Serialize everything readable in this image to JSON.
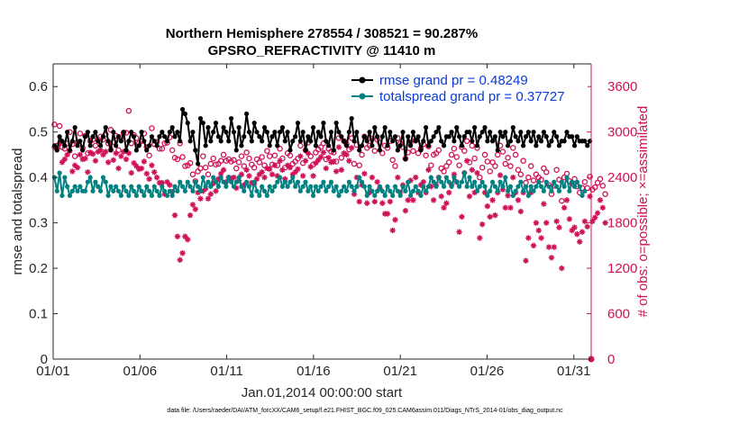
{
  "chart_data": {
    "type": "line",
    "title_line1": "Northern Hemisphere 278554 / 308521 = 90.287%",
    "title_line2": "GPSRO_REFRACTIVITY @ 11410 m",
    "ylabel_left": "rmse and totalspread",
    "ylabel_right": "# of obs: o=possible; ×=assimilated",
    "xlabel": "Jan.01,2014 00:00:00 start",
    "footnote": "data file: /Users/raeder/DAI/ATM_forcXX/CAM6_setup/f.e21.FHIST_BGC.f09_025.CAM6assim.011/Diags_NTrS_2014-01/obs_diag_output.nc",
    "x_ticks": [
      "01/01",
      "01/06",
      "01/11",
      "01/16",
      "01/21",
      "01/26",
      "01/31"
    ],
    "x_tick_days": [
      1,
      6,
      11,
      16,
      21,
      26,
      31
    ],
    "xlim": [
      1,
      32
    ],
    "ylim_left": [
      0,
      0.65
    ],
    "y_ticks_left": [
      "0",
      "0.1",
      "0.2",
      "0.3",
      "0.4",
      "0.5",
      "0.6"
    ],
    "ylim_right": [
      0,
      3900
    ],
    "y_ticks_right": [
      "0",
      "600",
      "1200",
      "1800",
      "2400",
      "3000",
      "3600"
    ],
    "grid": false,
    "legend_position": "top-right",
    "colors": {
      "rmse": "#000000",
      "totalspread": "#008080",
      "obs": "#d01058",
      "legend_text": "#0b3bd6"
    },
    "series": [
      {
        "name": "rmse grand pr = 0.48249",
        "values": [
          0.47,
          0.46,
          0.49,
          0.48,
          0.47,
          0.5,
          0.46,
          0.48,
          0.51,
          0.47,
          0.48,
          0.46,
          0.49,
          0.5,
          0.47,
          0.49,
          0.5,
          0.48,
          0.47,
          0.49,
          0.51,
          0.48,
          0.46,
          0.5,
          0.47,
          0.49,
          0.48,
          0.5,
          0.46,
          0.48,
          0.5,
          0.49,
          0.46,
          0.47,
          0.5,
          0.48,
          0.46,
          0.47,
          0.49,
          0.48,
          0.47,
          0.49,
          0.5,
          0.49,
          0.48,
          0.5,
          0.51,
          0.49,
          0.5,
          0.48,
          0.55,
          0.54,
          0.52,
          0.48,
          0.5,
          0.46,
          0.43,
          0.53,
          0.52,
          0.47,
          0.51,
          0.48,
          0.5,
          0.52,
          0.49,
          0.48,
          0.51,
          0.5,
          0.48,
          0.53,
          0.5,
          0.46,
          0.51,
          0.47,
          0.49,
          0.54,
          0.5,
          0.48,
          0.52,
          0.5,
          0.49,
          0.48,
          0.51,
          0.5,
          0.47,
          0.49,
          0.5,
          0.47,
          0.5,
          0.51,
          0.48,
          0.5,
          0.46,
          0.48,
          0.49,
          0.52,
          0.48,
          0.5,
          0.46,
          0.49,
          0.48,
          0.51,
          0.47,
          0.5,
          0.49,
          0.52,
          0.48,
          0.47,
          0.5,
          0.46,
          0.52,
          0.5,
          0.49,
          0.48,
          0.47,
          0.5,
          0.53,
          0.48,
          0.5,
          0.46,
          0.47,
          0.49,
          0.48,
          0.5,
          0.47,
          0.51,
          0.49,
          0.46,
          0.49,
          0.51,
          0.47,
          0.5,
          0.48,
          0.49,
          0.46,
          0.47,
          0.5,
          0.44,
          0.49,
          0.47,
          0.5,
          0.48,
          0.49,
          0.46,
          0.48,
          0.51,
          0.47,
          0.48,
          0.49,
          0.5,
          0.51,
          0.48,
          0.47,
          0.49,
          0.49,
          0.5,
          0.48,
          0.51,
          0.49,
          0.47,
          0.49,
          0.5,
          0.5,
          0.48,
          0.51,
          0.47,
          0.49,
          0.5,
          0.51,
          0.48,
          0.5,
          0.48,
          0.49,
          0.46,
          0.5,
          0.49,
          0.5,
          0.47,
          0.48,
          0.51,
          0.49,
          0.48,
          0.5,
          0.47,
          0.49,
          0.5,
          0.48,
          0.5,
          0.47,
          0.49,
          0.48,
          0.5,
          0.49,
          0.47,
          0.48,
          0.5,
          0.49,
          0.47,
          0.48,
          0.48,
          0.5,
          0.49,
          0.49,
          0.47,
          0.49,
          0.48,
          0.48,
          0.48,
          0.47,
          0.48
        ]
      },
      {
        "name": "totalspread grand pr = 0.37727",
        "values": [
          0.4,
          0.37,
          0.41,
          0.36,
          0.4,
          0.38,
          0.36,
          0.37,
          0.38,
          0.37,
          0.38,
          0.37,
          0.37,
          0.39,
          0.4,
          0.37,
          0.39,
          0.38,
          0.37,
          0.4,
          0.39,
          0.36,
          0.38,
          0.37,
          0.38,
          0.37,
          0.36,
          0.38,
          0.37,
          0.36,
          0.38,
          0.37,
          0.36,
          0.38,
          0.37,
          0.36,
          0.38,
          0.37,
          0.36,
          0.38,
          0.37,
          0.36,
          0.38,
          0.37,
          0.36,
          0.37,
          0.36,
          0.38,
          0.37,
          0.39,
          0.38,
          0.37,
          0.39,
          0.38,
          0.37,
          0.39,
          0.38,
          0.37,
          0.4,
          0.38,
          0.39,
          0.38,
          0.4,
          0.39,
          0.38,
          0.4,
          0.39,
          0.38,
          0.4,
          0.39,
          0.38,
          0.39,
          0.4,
          0.38,
          0.37,
          0.39,
          0.38,
          0.36,
          0.39,
          0.37,
          0.36,
          0.38,
          0.37,
          0.36,
          0.38,
          0.37,
          0.38,
          0.39,
          0.4,
          0.38,
          0.39,
          0.38,
          0.39,
          0.4,
          0.38,
          0.39,
          0.37,
          0.38,
          0.39,
          0.37,
          0.38,
          0.36,
          0.38,
          0.37,
          0.38,
          0.39,
          0.37,
          0.38,
          0.39,
          0.37,
          0.38,
          0.36,
          0.37,
          0.38,
          0.37,
          0.39,
          0.38,
          0.37,
          0.38,
          0.4,
          0.39,
          0.38,
          0.36,
          0.38,
          0.37,
          0.36,
          0.37,
          0.38,
          0.37,
          0.36,
          0.38,
          0.37,
          0.36,
          0.38,
          0.37,
          0.36,
          0.38,
          0.37,
          0.39,
          0.36,
          0.37,
          0.38,
          0.37,
          0.36,
          0.38,
          0.37,
          0.38,
          0.4,
          0.39,
          0.38,
          0.4,
          0.39,
          0.38,
          0.4,
          0.39,
          0.38,
          0.4,
          0.39,
          0.38,
          0.39,
          0.41,
          0.38,
          0.4,
          0.38,
          0.39,
          0.37,
          0.38,
          0.39,
          0.38,
          0.36,
          0.37,
          0.39,
          0.38,
          0.37,
          0.39,
          0.38,
          0.4,
          0.37,
          0.38,
          0.36,
          0.37,
          0.38,
          0.39,
          0.37,
          0.38,
          0.36,
          0.38,
          0.37,
          0.38,
          0.39,
          0.38,
          0.37,
          0.39,
          0.38,
          0.37,
          0.39,
          0.38,
          0.37,
          0.39,
          0.38,
          0.4,
          0.37,
          0.39,
          0.38,
          0.39,
          0.38,
          0.36,
          0.37
        ]
      }
    ],
    "obs_possible_counts": [
      3100,
      2820,
      3080,
      2800,
      2780,
      2850,
      3000,
      2840,
      2680,
      2870,
      2980,
      2790,
      2950,
      2720,
      2880,
      2900,
      2820,
      2900,
      2940,
      2900,
      2970,
      2850,
      3030,
      2870,
      2950,
      2760,
      2930,
      2990,
      2990,
      3280,
      2850,
      2960,
      2920,
      2850,
      2880,
      2980,
      2800,
      2690,
      3050,
      2840,
      2870,
      2780,
      2780,
      2850,
      2860,
      2930,
      2760,
      2660,
      2640,
      2850,
      2670,
      2550,
      2560,
      2590,
      2440,
      2350,
      2480,
      2520,
      2680,
      2530,
      2440,
      2580,
      2650,
      2570,
      2580,
      2620,
      2700,
      2620,
      2640,
      2610,
      2630,
      2520,
      2600,
      2680,
      2550,
      2730,
      2650,
      2570,
      2530,
      2640,
      2600,
      2670,
      2560,
      2750,
      2680,
      2570,
      2690,
      2560,
      2780,
      2650,
      2530,
      2720,
      2690,
      2580,
      2610,
      2650,
      2820,
      2590,
      2760,
      2860,
      2680,
      2570,
      2730,
      2770,
      2800,
      2850,
      2640,
      2780,
      2740,
      2730,
      2610,
      2920,
      2660,
      2880,
      2840,
      2770,
      2920,
      2580,
      2830,
      2560,
      2700,
      2940,
      2790,
      2820,
      2910,
      2750,
      2900,
      2860,
      2720,
      2820,
      2790,
      2880,
      2630,
      2550,
      2920,
      2850,
      2800,
      2650,
      2730,
      2860,
      2750,
      2890,
      2720,
      2780,
      2840,
      2690,
      2810,
      2560,
      2700,
      2720,
      2760,
      2520,
      2480,
      2550,
      2600,
      2700,
      2780,
      2670,
      2560,
      2800,
      2750,
      2880,
      2600,
      2820,
      2650,
      2790,
      2400,
      2530,
      2700,
      2610,
      2480,
      2600,
      2550,
      2700,
      2820,
      2740,
      2580,
      2660,
      2550,
      2790,
      2700,
      2500,
      2440,
      2620,
      2330,
      2400,
      2550,
      2360,
      2440,
      2400,
      2370,
      2520,
      2470,
      2300,
      2180,
      2290,
      2500,
      2370,
      2090,
      2400,
      2450,
      2350,
      2320,
      2380,
      2280,
      2200,
      2260,
      2340,
      2260,
      2410,
      2240,
      2270,
      2330,
      2380,
      2290,
      2180
    ],
    "obs_assimilated_counts": [
      2800,
      2780,
      2850,
      2600,
      2640,
      2700,
      2750,
      2480,
      2560,
      2530,
      2700,
      2640,
      2650,
      2470,
      2730,
      2710,
      2620,
      2740,
      2760,
      2700,
      2740,
      2600,
      2770,
      2630,
      2720,
      2520,
      2680,
      2740,
      2640,
      2720,
      2460,
      2590,
      2550,
      2510,
      2520,
      2610,
      2450,
      2380,
      2560,
      2470,
      2400,
      2330,
      2330,
      2180,
      2340,
      2300,
      2210,
      1900,
      1620,
      1310,
      1400,
      1620,
      1580,
      1900,
      2040,
      1980,
      2200,
      2120,
      2220,
      2250,
      2120,
      2180,
      2320,
      2220,
      2380,
      2450,
      2500,
      2340,
      2400,
      2380,
      2400,
      2260,
      2360,
      2440,
      2300,
      2500,
      2420,
      2330,
      2320,
      2380,
      2440,
      2470,
      2400,
      2520,
      2510,
      2440,
      2560,
      2420,
      2620,
      2500,
      2380,
      2560,
      2530,
      2440,
      2470,
      2510,
      2680,
      2420,
      2620,
      2720,
      2540,
      2420,
      2590,
      2630,
      2670,
      2730,
      2520,
      2660,
      2600,
      2610,
      2480,
      2800,
      2500,
      2720,
      2700,
      2620,
      2790,
      2180,
      2400,
      2080,
      2300,
      2450,
      2060,
      2200,
      2400,
      2080,
      2340,
      2260,
      2060,
      1920,
      1920,
      2080,
      1700,
      1840,
      2400,
      2200,
      2300,
      1960,
      2100,
      2360,
      2100,
      2400,
      2200,
      2300,
      2340,
      2200,
      2500,
      2280,
      2100,
      2300,
      2400,
      2150,
      2000,
      2060,
      2200,
      2300,
      2440,
      2340,
      1680,
      1880,
      2460,
      2620,
      2150,
      2500,
      2200,
      2460,
      1600,
      1780,
      2200,
      2020,
      1880,
      2100,
      1900,
      2200,
      2430,
      2240,
      2000,
      2160,
      2000,
      2400,
      2200,
      2100,
      1950,
      2200,
      1300,
      1600,
      2200,
      1500,
      1800,
      1700,
      1600,
      2050,
      1800,
      1480,
      1340,
      1480,
      1820,
      1740,
      1200,
      2000,
      2100,
      1850,
      1700,
      1740,
      1650,
      1550,
      1680,
      1820,
      1750,
      2150,
      1820,
      1870,
      1930,
      2100,
      2000,
      1800
    ]
  }
}
